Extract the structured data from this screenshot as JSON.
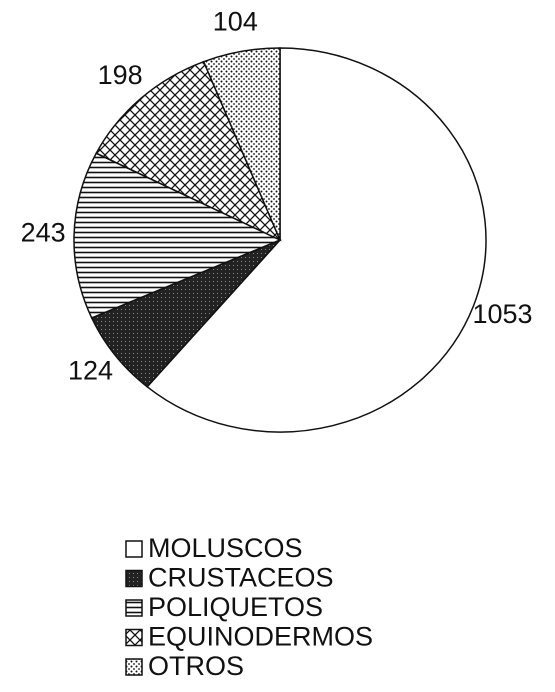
{
  "chart_data": {
    "type": "pie",
    "categories": [
      "MOLUSCOS",
      "CRUSTACEOS",
      "POLIQUETOS",
      "EQUINODERMOS",
      "OTROS"
    ],
    "values": [
      1053,
      124,
      243,
      198,
      104
    ],
    "patterns": [
      "none",
      "dark",
      "horizontal",
      "crosshatch",
      "dots"
    ]
  }
}
